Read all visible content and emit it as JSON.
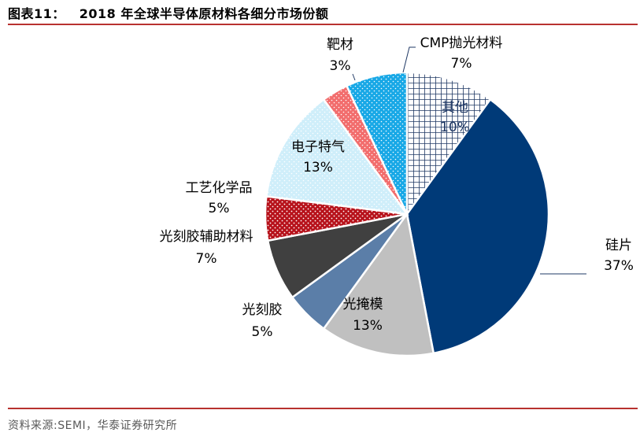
{
  "title": {
    "figure_no": "图表11：",
    "text": "2018 年全球半导体原材料各细分市场份额"
  },
  "source": "资料来源:SEMI，华泰证券研究所",
  "chart_data": {
    "type": "pie",
    "title": "2018 年全球半导体原材料各细分市场份额",
    "start_angle_deg": 0,
    "direction": "clockwise",
    "slices": [
      {
        "label": "其他",
        "value": 10,
        "value_label": "10%",
        "color": "#1f3864",
        "pattern": "crosshatch"
      },
      {
        "label": "硅片",
        "value": 37,
        "value_label": "37%",
        "color": "#003a78",
        "pattern": "none"
      },
      {
        "label": "光掩模",
        "value": 13,
        "value_label": "13%",
        "color": "#c0c0c0",
        "pattern": "none"
      },
      {
        "label": "光刻胶",
        "value": 5,
        "value_label": "5%",
        "color": "#5b7ea8",
        "pattern": "none"
      },
      {
        "label": "光刻胶辅助材料",
        "value": 7,
        "value_label": "7%",
        "color": "#404040",
        "pattern": "none"
      },
      {
        "label": "工艺化学品",
        "value": 5,
        "value_label": "5%",
        "color": "#b7121b",
        "pattern": "dots"
      },
      {
        "label": "电子特气",
        "value": 13,
        "value_label": "13%",
        "color": "#cfeefa",
        "pattern": "dots"
      },
      {
        "label": "靶材",
        "value": 3,
        "value_label": "3%",
        "color": "#f26d6d",
        "pattern": "dots"
      },
      {
        "label": "CMP抛光材料",
        "value": 7,
        "value_label": "7%",
        "color": "#18a8e6",
        "pattern": "dots"
      }
    ]
  }
}
